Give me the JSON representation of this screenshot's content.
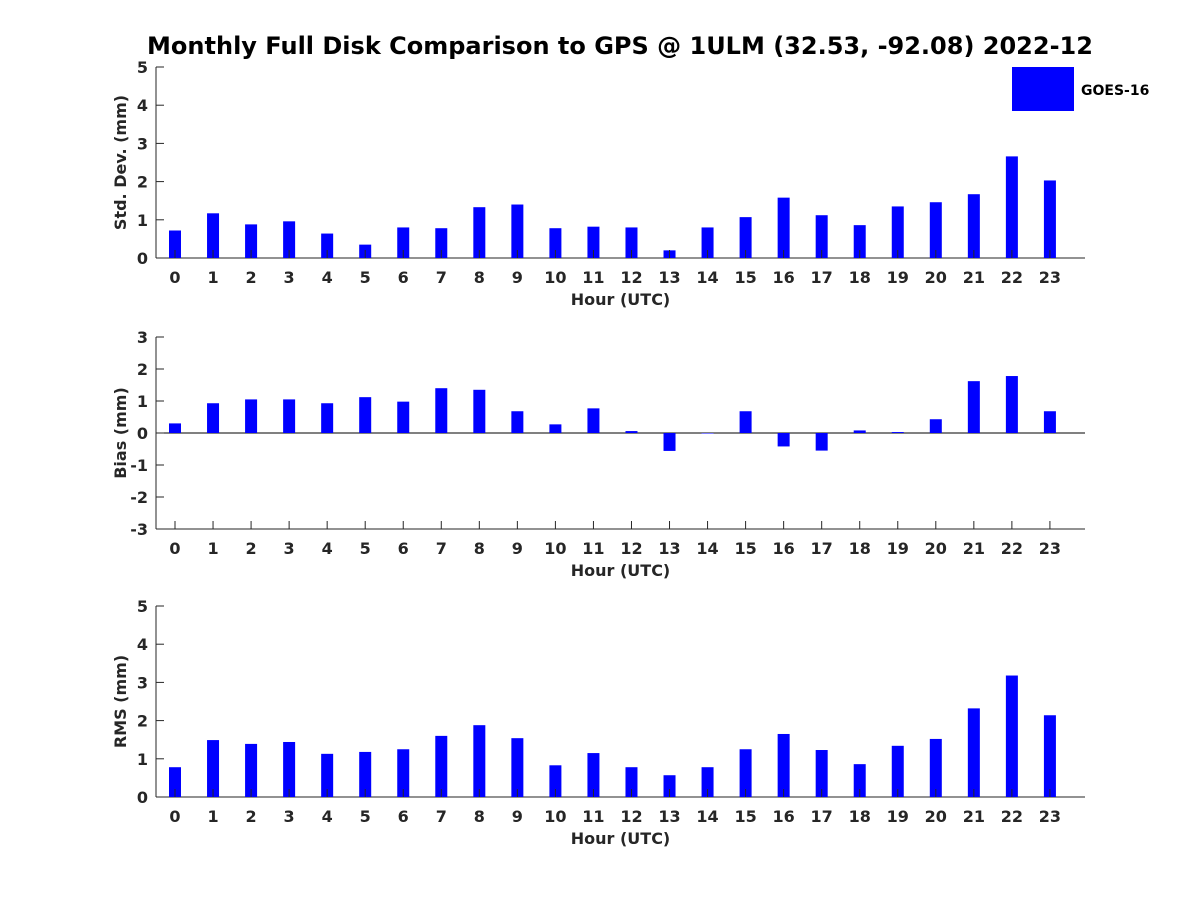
{
  "title": "Monthly Full Disk Comparison to GPS @ 1ULM (32.53, -92.08) 2022-12",
  "colors": {
    "bar": "#0000ff",
    "axis": "#262626"
  },
  "legend": {
    "label": "GOES-16",
    "placement": "top-right"
  },
  "chart_data": [
    {
      "type": "bar",
      "ylabel": "Std. Dev. (mm)",
      "xlabel": "Hour (UTC)",
      "categories": [
        "0",
        "1",
        "2",
        "3",
        "4",
        "5",
        "6",
        "7",
        "8",
        "9",
        "10",
        "11",
        "12",
        "13",
        "14",
        "15",
        "16",
        "17",
        "18",
        "19",
        "20",
        "21",
        "22",
        "23"
      ],
      "series": [
        {
          "name": "GOES-16",
          "values": [
            0.72,
            1.17,
            0.88,
            0.96,
            0.64,
            0.35,
            0.8,
            0.78,
            1.33,
            1.4,
            0.78,
            0.82,
            0.8,
            0.2,
            0.8,
            1.07,
            1.58,
            1.12,
            0.86,
            1.35,
            1.46,
            1.67,
            2.66,
            2.03
          ]
        }
      ],
      "ylim": [
        0,
        5
      ],
      "yticks": [
        "0",
        "1",
        "2",
        "3",
        "4",
        "5"
      ],
      "grid": false
    },
    {
      "type": "bar",
      "ylabel": "Bias (mm)",
      "xlabel": "Hour (UTC)",
      "categories": [
        "0",
        "1",
        "2",
        "3",
        "4",
        "5",
        "6",
        "7",
        "8",
        "9",
        "10",
        "11",
        "12",
        "13",
        "14",
        "15",
        "16",
        "17",
        "18",
        "19",
        "20",
        "21",
        "22",
        "23"
      ],
      "series": [
        {
          "name": "GOES-16",
          "values": [
            0.3,
            0.93,
            1.05,
            1.05,
            0.93,
            1.12,
            0.98,
            1.4,
            1.35,
            0.68,
            0.27,
            0.77,
            0.06,
            -0.56,
            -0.01,
            0.68,
            -0.42,
            -0.55,
            0.08,
            0.03,
            0.43,
            1.62,
            1.78,
            0.68
          ]
        }
      ],
      "ylim": [
        -3,
        3
      ],
      "yticks": [
        "-3",
        "-2",
        "-1",
        "0",
        "1",
        "2",
        "3"
      ],
      "grid": false
    },
    {
      "type": "bar",
      "ylabel": "RMS (mm)",
      "xlabel": "Hour (UTC)",
      "categories": [
        "0",
        "1",
        "2",
        "3",
        "4",
        "5",
        "6",
        "7",
        "8",
        "9",
        "10",
        "11",
        "12",
        "13",
        "14",
        "15",
        "16",
        "17",
        "18",
        "19",
        "20",
        "21",
        "22",
        "23"
      ],
      "series": [
        {
          "name": "GOES-16",
          "values": [
            0.78,
            1.49,
            1.39,
            1.44,
            1.13,
            1.18,
            1.25,
            1.6,
            1.88,
            1.54,
            0.83,
            1.15,
            0.78,
            0.57,
            0.78,
            1.25,
            1.65,
            1.23,
            0.86,
            1.34,
            1.52,
            2.32,
            3.18,
            2.14
          ]
        }
      ],
      "ylim": [
        0,
        5
      ],
      "yticks": [
        "0",
        "1",
        "2",
        "3",
        "4",
        "5"
      ],
      "grid": false
    }
  ]
}
